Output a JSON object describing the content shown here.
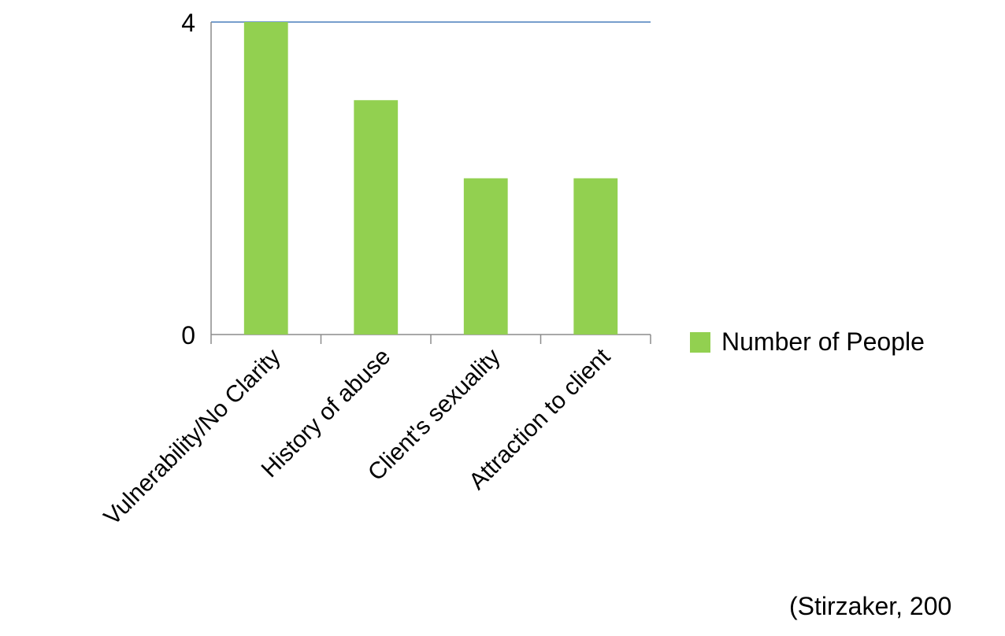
{
  "chart_data": {
    "type": "bar",
    "categories": [
      "Vulnerability/No Clarity",
      "History of abuse",
      "Client's sexuality",
      "Attraction to client"
    ],
    "series": [
      {
        "name": "Number of People",
        "values": [
          4,
          3,
          2,
          2
        ],
        "color": "#92d050"
      }
    ],
    "ylim": [
      0,
      4
    ],
    "yticks": [
      "0",
      "4"
    ],
    "grid": false,
    "legend": "right",
    "title": "",
    "xlabel": "",
    "ylabel": ""
  },
  "citation": "(Stirzaker, 200",
  "colors": {
    "bar": "#92d050",
    "axis": "#8c8c8c",
    "top_line": "#4a7ebb"
  }
}
